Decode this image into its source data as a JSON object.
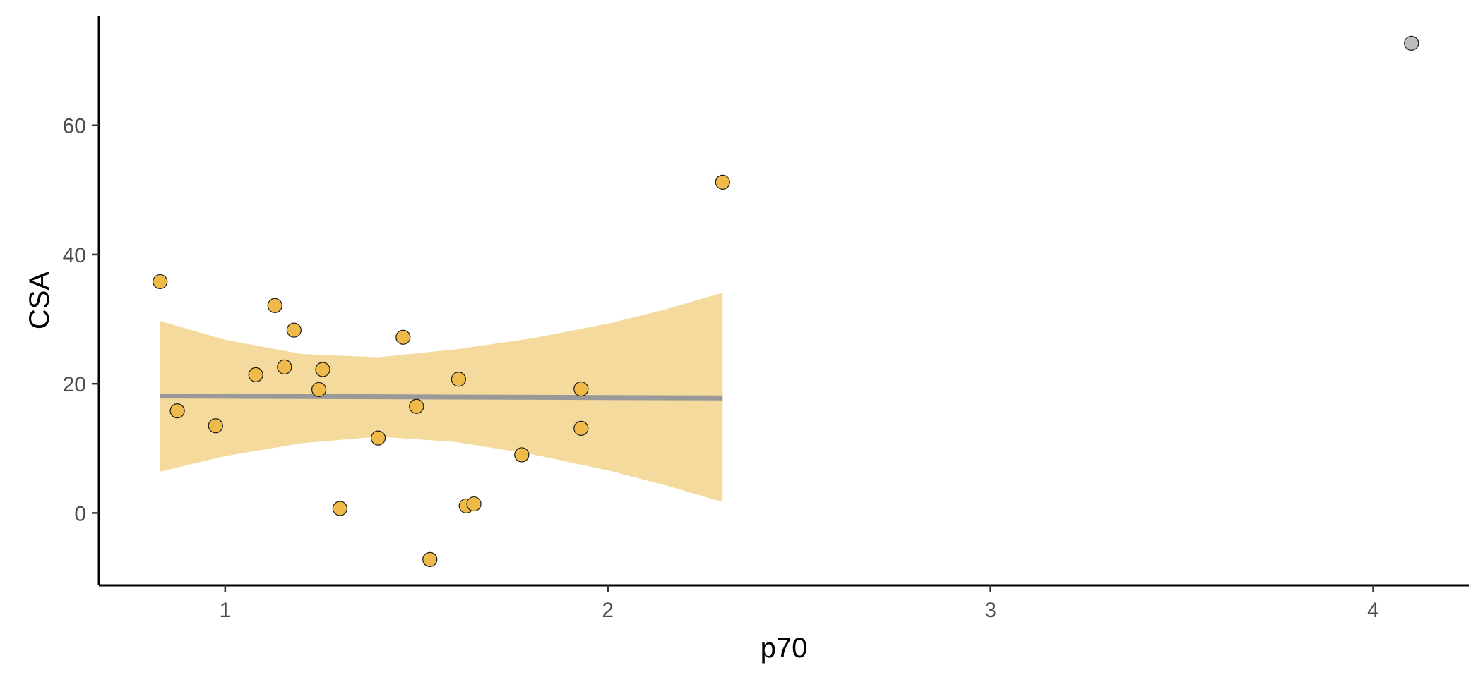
{
  "chart_data": {
    "type": "scatter",
    "title": "",
    "xlabel": "p70",
    "ylabel": "CSA",
    "xlim": [
      0.67,
      4.25
    ],
    "ylim": [
      -11.2,
      77
    ],
    "x_ticks": [
      1,
      2,
      3,
      4
    ],
    "x_tick_labels": [
      "1",
      "2",
      "3",
      "4"
    ],
    "y_ticks": [
      0,
      20,
      40,
      60
    ],
    "y_tick_labels": [
      "0",
      "20",
      "40",
      "60"
    ],
    "grid": false,
    "legend": "none",
    "points": [
      {
        "x": 0.83,
        "y": 35.8,
        "group": "main"
      },
      {
        "x": 0.875,
        "y": 15.8,
        "group": "main"
      },
      {
        "x": 0.975,
        "y": 13.5,
        "group": "main"
      },
      {
        "x": 1.08,
        "y": 21.4,
        "group": "main"
      },
      {
        "x": 1.13,
        "y": 32.1,
        "group": "main"
      },
      {
        "x": 1.155,
        "y": 22.6,
        "group": "main"
      },
      {
        "x": 1.18,
        "y": 28.3,
        "group": "main"
      },
      {
        "x": 1.245,
        "y": 19.1,
        "group": "main"
      },
      {
        "x": 1.255,
        "y": 22.2,
        "group": "main"
      },
      {
        "x": 1.3,
        "y": 0.7,
        "group": "main"
      },
      {
        "x": 1.4,
        "y": 11.6,
        "group": "main"
      },
      {
        "x": 1.465,
        "y": 27.2,
        "group": "main"
      },
      {
        "x": 1.5,
        "y": 16.5,
        "group": "main"
      },
      {
        "x": 1.535,
        "y": -7.2,
        "group": "main"
      },
      {
        "x": 1.61,
        "y": 20.7,
        "group": "main"
      },
      {
        "x": 1.63,
        "y": 1.1,
        "group": "main"
      },
      {
        "x": 1.65,
        "y": 1.4,
        "group": "main"
      },
      {
        "x": 1.775,
        "y": 9.0,
        "group": "main"
      },
      {
        "x": 1.93,
        "y": 19.2,
        "group": "main"
      },
      {
        "x": 1.93,
        "y": 13.1,
        "group": "main"
      },
      {
        "x": 2.3,
        "y": 51.2,
        "group": "main"
      },
      {
        "x": 4.1,
        "y": 72.7,
        "group": "outlier"
      }
    ],
    "fit_line": {
      "x": [
        0.83,
        2.3
      ],
      "y": [
        18.1,
        17.8
      ]
    },
    "confidence_band": {
      "x": [
        0.83,
        1.0,
        1.2,
        1.4,
        1.6,
        1.8,
        2.0,
        2.15,
        2.3
      ],
      "upper": [
        29.7,
        26.8,
        24.6,
        24.1,
        25.3,
        27.0,
        29.3,
        31.5,
        34.1
      ],
      "lower": [
        6.4,
        8.8,
        10.8,
        11.8,
        11.0,
        9.1,
        6.6,
        4.3,
        1.7
      ]
    },
    "colors": {
      "point_fill": "#F0BA4B",
      "point_stroke": "#1a1a1a",
      "outlier_fill": "#BDBDBD",
      "fit_line": "#999999",
      "band": "#F5DA9D",
      "axis": "#000000",
      "tick_text": "#4d4d4d"
    }
  }
}
